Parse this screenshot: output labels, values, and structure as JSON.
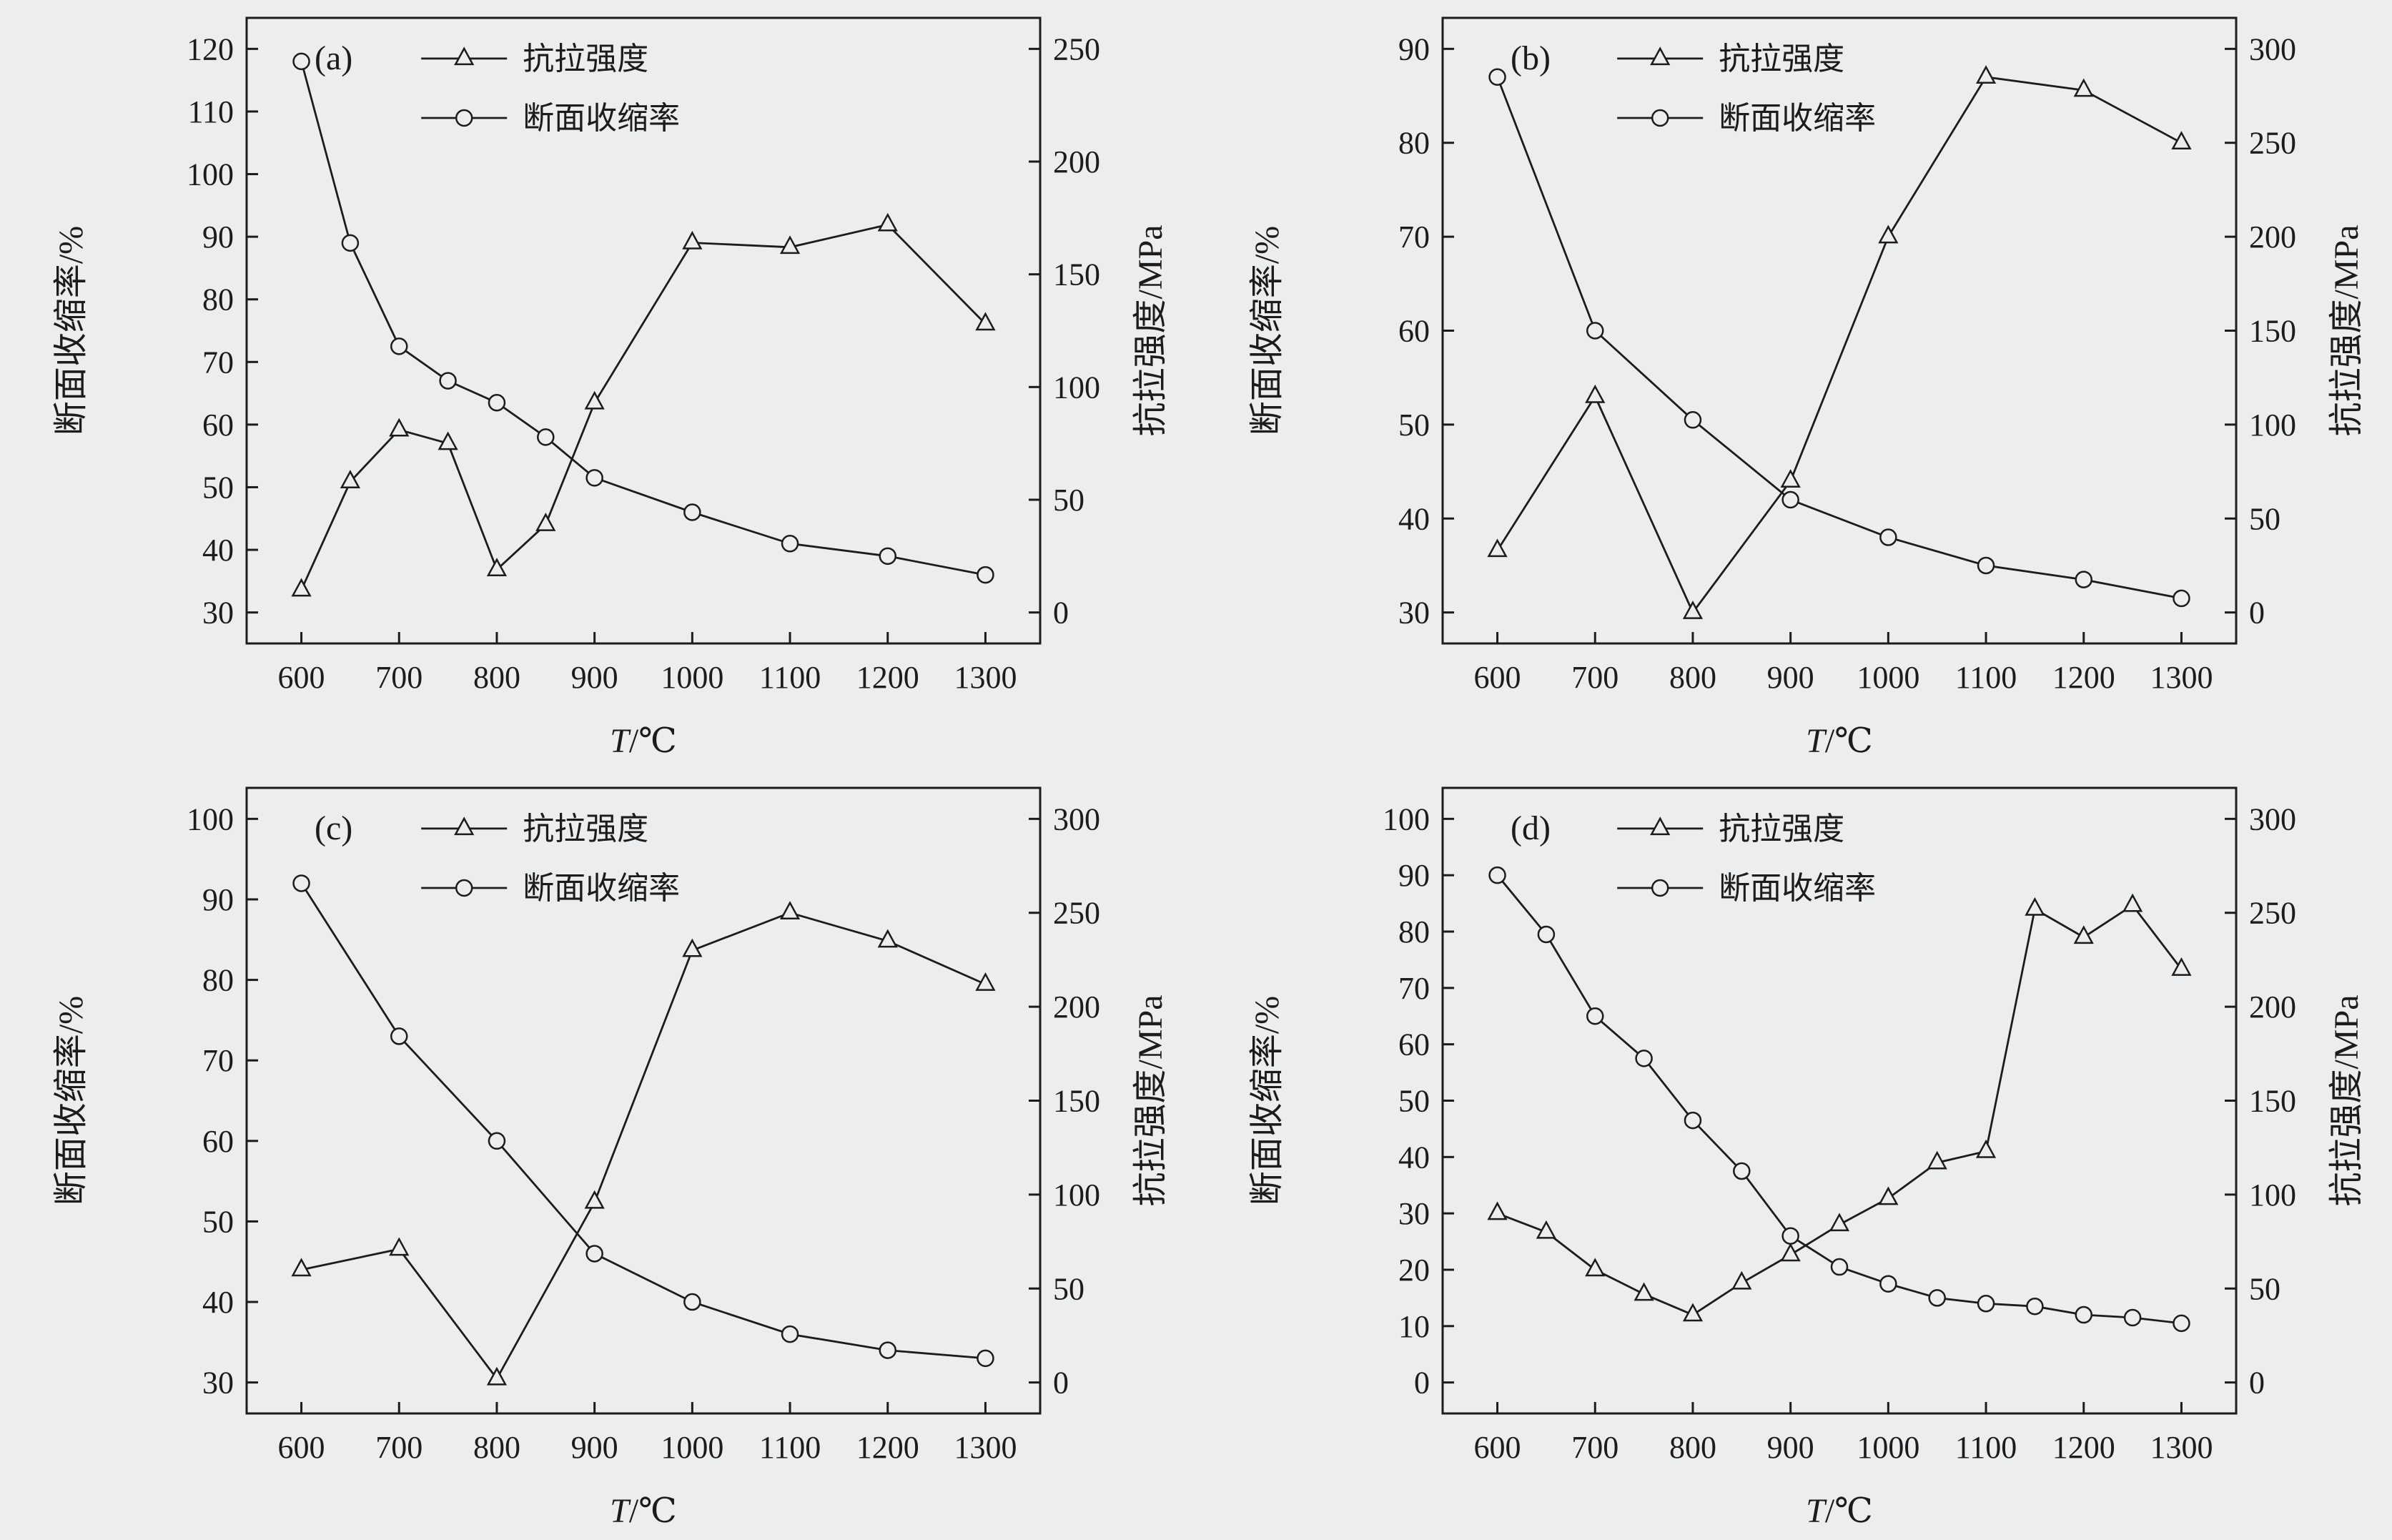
{
  "style": {
    "background": "#ecedef",
    "line_color": "#1c1c1c",
    "text_color": "#1c1c1c"
  },
  "chart_data": [
    {
      "type": "line",
      "panel_label": "(a)",
      "xlabel": "T/℃",
      "ylabel_left": "断面收缩率/%",
      "ylabel_right": "抗拉强度/MPa",
      "x_ticks": [
        600,
        700,
        800,
        900,
        1000,
        1100,
        1200,
        1300
      ],
      "left_ticks": [
        30,
        40,
        50,
        60,
        70,
        80,
        90,
        100,
        110,
        120
      ],
      "right_ticks": [
        0,
        50,
        100,
        150,
        200,
        250
      ],
      "legend": [
        {
          "marker": "triangle",
          "label": "抗拉强度"
        },
        {
          "marker": "circle",
          "label": "断面收缩率"
        }
      ],
      "series": [
        {
          "id": "tensile-strength",
          "label": "抗拉强度",
          "marker": "triangle",
          "axis": "right",
          "x": [
            600,
            650,
            700,
            750,
            800,
            850,
            900,
            1000,
            1100,
            1200,
            1300
          ],
          "y": [
            10,
            58,
            81,
            75,
            19,
            39,
            93,
            164,
            162,
            172,
            128
          ]
        },
        {
          "id": "reduction-of-area",
          "label": "断面收缩率",
          "marker": "circle",
          "axis": "left",
          "x": [
            600,
            650,
            700,
            750,
            800,
            850,
            900,
            1000,
            1100,
            1200,
            1300
          ],
          "y": [
            118,
            89,
            72.5,
            67,
            63.5,
            58,
            51.5,
            46,
            41,
            39,
            36
          ]
        }
      ]
    },
    {
      "type": "line",
      "panel_label": "(b)",
      "xlabel": "T/℃",
      "ylabel_left": "断面收缩率/%",
      "ylabel_right": "抗拉强度/MPa",
      "x_ticks": [
        600,
        700,
        800,
        900,
        1000,
        1100,
        1200,
        1300
      ],
      "left_ticks": [
        30,
        40,
        50,
        60,
        70,
        80,
        90
      ],
      "right_ticks": [
        0,
        50,
        100,
        150,
        200,
        250,
        300
      ],
      "legend": [
        {
          "marker": "triangle",
          "label": "抗拉强度"
        },
        {
          "marker": "circle",
          "label": "断面收缩率"
        }
      ],
      "series": [
        {
          "id": "tensile-strength",
          "label": "抗拉强度",
          "marker": "triangle",
          "axis": "right",
          "x": [
            600,
            700,
            800,
            900,
            1000,
            1100,
            1200,
            1300
          ],
          "y": [
            33,
            115,
            0,
            70,
            200,
            285,
            278,
            250
          ]
        },
        {
          "id": "reduction-of-area",
          "label": "断面收缩率",
          "marker": "circle",
          "axis": "left",
          "x": [
            600,
            700,
            800,
            900,
            1000,
            1100,
            1200,
            1300
          ],
          "y": [
            87,
            60,
            50.5,
            42,
            38,
            35,
            33.5,
            31.5
          ]
        }
      ]
    },
    {
      "type": "line",
      "panel_label": "(c)",
      "xlabel": "T/℃",
      "ylabel_left": "断面收缩率/%",
      "ylabel_right": "抗拉强度/MPa",
      "x_ticks": [
        600,
        700,
        800,
        900,
        1000,
        1100,
        1200,
        1300
      ],
      "left_ticks": [
        30,
        40,
        50,
        60,
        70,
        80,
        90,
        100
      ],
      "right_ticks": [
        0,
        50,
        100,
        150,
        200,
        250,
        300
      ],
      "legend": [
        {
          "marker": "triangle",
          "label": "抗拉强度"
        },
        {
          "marker": "circle",
          "label": "断面收缩率"
        }
      ],
      "series": [
        {
          "id": "tensile-strength",
          "label": "抗拉强度",
          "marker": "triangle",
          "axis": "right",
          "x": [
            600,
            700,
            800,
            900,
            1000,
            1100,
            1200,
            1300
          ],
          "y": [
            60,
            71,
            2,
            96,
            230,
            250,
            235,
            212
          ]
        },
        {
          "id": "reduction-of-area",
          "label": "断面收缩率",
          "marker": "circle",
          "axis": "left",
          "x": [
            600,
            700,
            800,
            900,
            1000,
            1100,
            1200,
            1300
          ],
          "y": [
            92,
            73,
            60,
            46,
            40,
            36,
            34,
            33
          ]
        }
      ]
    },
    {
      "type": "line",
      "panel_label": "(d)",
      "xlabel": "T/℃",
      "ylabel_left": "断面收缩率/%",
      "ylabel_right": "抗拉强度/MPa",
      "x_ticks": [
        600,
        700,
        800,
        900,
        1000,
        1100,
        1200,
        1300
      ],
      "left_ticks": [
        0,
        10,
        20,
        30,
        40,
        50,
        60,
        70,
        80,
        90,
        100
      ],
      "right_ticks": [
        0,
        50,
        100,
        150,
        200,
        250,
        300
      ],
      "legend": [
        {
          "marker": "triangle",
          "label": "抗拉强度"
        },
        {
          "marker": "circle",
          "label": "断面收缩率"
        }
      ],
      "series": [
        {
          "id": "tensile-strength",
          "label": "抗拉强度",
          "marker": "triangle",
          "axis": "right",
          "x": [
            600,
            650,
            700,
            750,
            800,
            850,
            900,
            950,
            1000,
            1050,
            1100,
            1150,
            1200,
            1250,
            1300
          ],
          "y": [
            90,
            80,
            60,
            47,
            36,
            53,
            68,
            84,
            98,
            117,
            123,
            252,
            237,
            254,
            220
          ]
        },
        {
          "id": "reduction-of-area",
          "label": "断面收缩率",
          "marker": "circle",
          "axis": "left",
          "x": [
            600,
            650,
            700,
            750,
            800,
            850,
            900,
            950,
            1000,
            1050,
            1100,
            1150,
            1200,
            1250,
            1300
          ],
          "y": [
            90,
            79.5,
            65,
            57.5,
            46.5,
            37.5,
            26,
            20.5,
            17.5,
            15,
            14,
            13.5,
            12,
            11.5,
            10.5
          ]
        }
      ]
    }
  ]
}
